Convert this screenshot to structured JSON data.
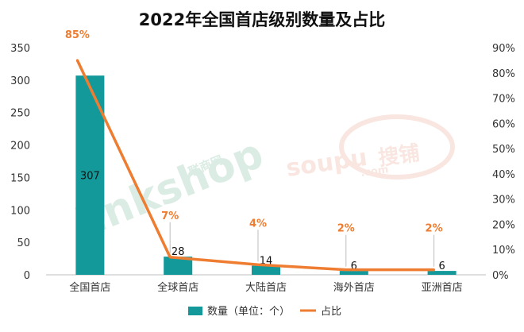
{
  "chart_data": {
    "type": "bar",
    "title": "2022年全国首店级别数量及占比",
    "categories": [
      "全国首店",
      "全球首店",
      "大陆首店",
      "海外首店",
      "亚洲首店"
    ],
    "series": [
      {
        "name": "数量（单位：个）",
        "type": "bar",
        "axis": "left",
        "values": [
          307,
          28,
          14,
          6,
          6
        ],
        "labels": [
          "307",
          "28",
          "14",
          "6",
          "6"
        ]
      },
      {
        "name": "占比",
        "type": "line",
        "axis": "right",
        "values": [
          85,
          7,
          4,
          2,
          2
        ],
        "labels": [
          "85%",
          "7%",
          "4%",
          "2%",
          "2%"
        ]
      }
    ],
    "y_left": {
      "ylim": [
        0,
        350
      ],
      "ticks": [
        0,
        50,
        100,
        150,
        200,
        250,
        300,
        350
      ],
      "tick_labels": [
        "0",
        "50",
        "100",
        "150",
        "200",
        "250",
        "300",
        "350"
      ]
    },
    "y_right": {
      "ylim": [
        0,
        90
      ],
      "ticks": [
        0,
        10,
        20,
        30,
        40,
        50,
        60,
        70,
        80,
        90
      ],
      "tick_labels": [
        "0%",
        "10%",
        "20%",
        "30%",
        "40%",
        "50%",
        "60%",
        "70%",
        "80%",
        "90%"
      ]
    },
    "grid": false,
    "legend_position": "bottom",
    "colors": {
      "bar": "#14999a",
      "line": "#ee7d31",
      "line_label": "#ee7d31"
    }
  },
  "watermarks": {
    "linkshop": "linkshop",
    "linkshop_cn": "联商网",
    "soupu": "soupu",
    "soupu_cn": "搜铺",
    "soupu_com": ".com"
  }
}
